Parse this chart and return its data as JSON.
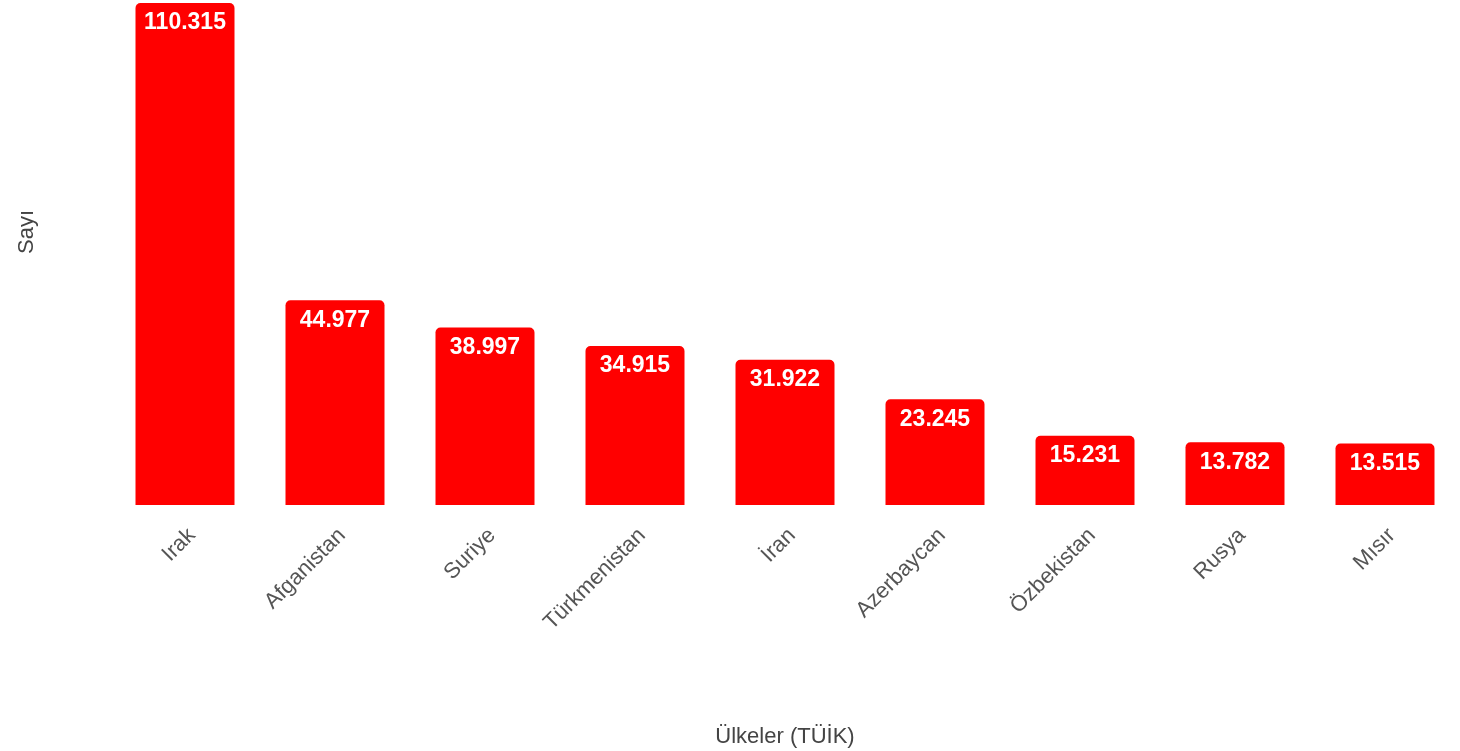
{
  "chart_data": {
    "type": "bar",
    "xlabel": "Ülkeler   (TÜİK)",
    "ylabel": "Sayı",
    "categories": [
      "Irak",
      "Afganistan",
      "Suriye",
      "Türkmenistan",
      "İran",
      "Azerbaycan",
      "Özbekistan",
      "Rusya",
      "Mısır"
    ],
    "values": [
      110.315,
      44.977,
      38.997,
      34.915,
      31.922,
      23.245,
      15.231,
      13.782,
      13.515
    ],
    "color": "#ff0000",
    "data_labels": true
  }
}
